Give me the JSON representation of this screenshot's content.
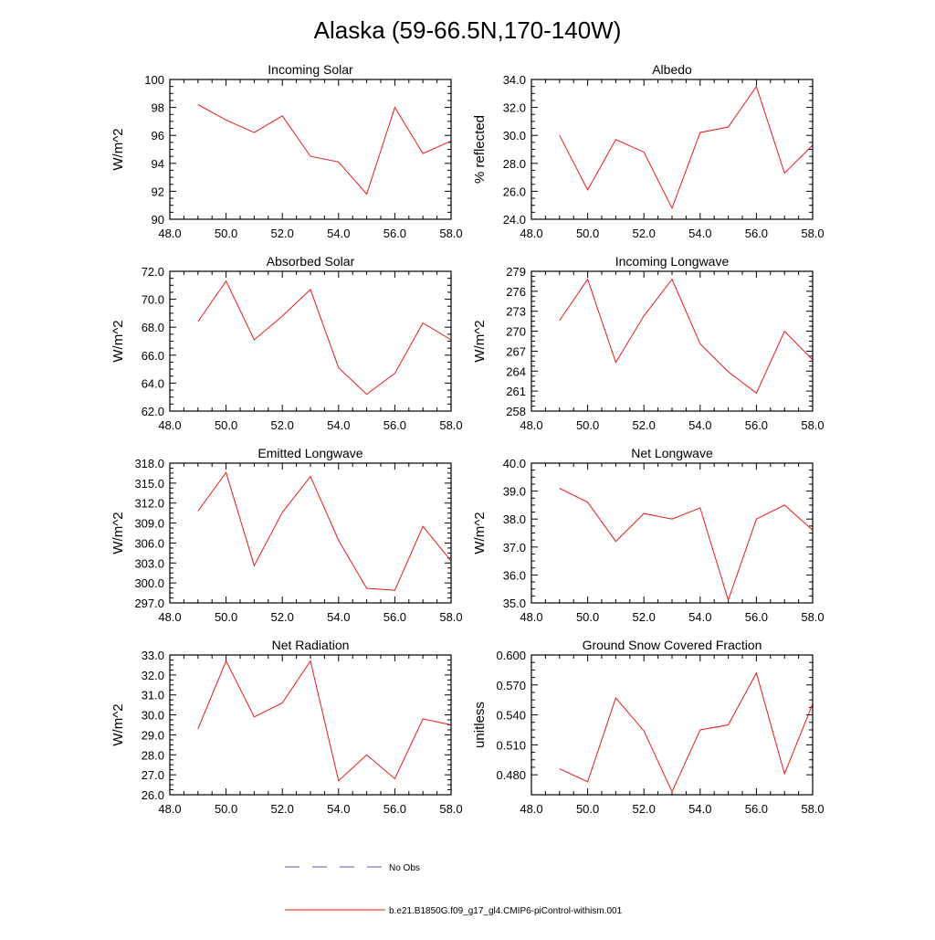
{
  "page": {
    "title": "Alaska (59-66.5N,170-140W)"
  },
  "legend": {
    "obs_label": "No Obs",
    "obs_color": "#5a5aa8",
    "model_label": "b.e21.B1850G.f09_g17_gl4.CMIP6-piControl-withism.001",
    "model_color": "#e41a1c"
  },
  "chart_data": [
    {
      "type": "line",
      "title": "Incoming Solar",
      "ylabel": "W/m^2",
      "xlim": [
        48,
        58
      ],
      "xticks": [
        "48.0",
        "50.0",
        "52.0",
        "54.0",
        "56.0",
        "58.0"
      ],
      "ylim": [
        90,
        100
      ],
      "yticks": [
        "90",
        "92",
        "94",
        "96",
        "98",
        "100"
      ],
      "series": [
        {
          "x": [
            49,
            50,
            51,
            52,
            53,
            54,
            55,
            56,
            57,
            58
          ],
          "values": [
            98.2,
            97.1,
            96.2,
            97.4,
            94.5,
            94.1,
            91.8,
            98.0,
            94.7,
            95.6
          ]
        }
      ]
    },
    {
      "type": "line",
      "title": "Albedo",
      "ylabel": "% reflected",
      "xlim": [
        48,
        58
      ],
      "xticks": [
        "48.0",
        "50.0",
        "52.0",
        "54.0",
        "56.0",
        "58.0"
      ],
      "ylim": [
        24,
        34
      ],
      "yticks": [
        "24.0",
        "26.0",
        "28.0",
        "30.0",
        "32.0",
        "34.0"
      ],
      "series": [
        {
          "x": [
            49,
            50,
            51,
            52,
            53,
            54,
            55,
            56,
            57,
            58
          ],
          "values": [
            30.0,
            26.1,
            29.7,
            28.8,
            24.8,
            30.2,
            30.6,
            33.5,
            27.3,
            29.3
          ]
        }
      ]
    },
    {
      "type": "line",
      "title": "Absorbed Solar",
      "ylabel": "W/m^2",
      "xlim": [
        48,
        58
      ],
      "xticks": [
        "48.0",
        "50.0",
        "52.0",
        "54.0",
        "56.0",
        "58.0"
      ],
      "ylim": [
        62,
        72
      ],
      "yticks": [
        "62.0",
        "64.0",
        "66.0",
        "68.0",
        "70.0",
        "72.0"
      ],
      "series": [
        {
          "x": [
            49,
            50,
            51,
            52,
            53,
            54,
            55,
            56,
            57,
            58
          ],
          "values": [
            68.4,
            71.3,
            67.1,
            68.8,
            70.7,
            65.1,
            63.2,
            64.7,
            68.3,
            67.1
          ]
        }
      ]
    },
    {
      "type": "line",
      "title": "Incoming Longwave",
      "ylabel": "W/m^2",
      "xlim": [
        48,
        58
      ],
      "xticks": [
        "48.0",
        "50.0",
        "52.0",
        "54.0",
        "56.0",
        "58.0"
      ],
      "ylim": [
        258,
        279
      ],
      "yticks": [
        "258",
        "261",
        "264",
        "267",
        "270",
        "273",
        "276",
        "279"
      ],
      "series": [
        {
          "x": [
            49,
            50,
            51,
            52,
            53,
            54,
            55,
            56,
            57,
            58
          ],
          "values": [
            271.6,
            277.8,
            265.3,
            272.3,
            277.8,
            268.1,
            263.9,
            260.7,
            270.0,
            265.7
          ]
        }
      ]
    },
    {
      "type": "line",
      "title": "Emitted Longwave",
      "ylabel": "W/m^2",
      "xlim": [
        48,
        58
      ],
      "xticks": [
        "48.0",
        "50.0",
        "52.0",
        "54.0",
        "56.0",
        "58.0"
      ],
      "ylim": [
        297,
        318
      ],
      "yticks": [
        "297.0",
        "300.0",
        "303.0",
        "306.0",
        "309.0",
        "312.0",
        "315.0",
        "318.0"
      ],
      "series": [
        {
          "x": [
            49,
            50,
            51,
            52,
            53,
            54,
            55,
            56,
            57,
            58
          ],
          "values": [
            310.8,
            316.6,
            302.6,
            310.6,
            316.0,
            306.4,
            299.2,
            298.9,
            308.5,
            303.3
          ]
        }
      ]
    },
    {
      "type": "line",
      "title": "Net Longwave",
      "ylabel": "W/m^2",
      "xlim": [
        48,
        58
      ],
      "xticks": [
        "48.0",
        "50.0",
        "52.0",
        "54.0",
        "56.0",
        "58.0"
      ],
      "ylim": [
        35,
        40
      ],
      "yticks": [
        "35.0",
        "36.0",
        "37.0",
        "38.0",
        "39.0",
        "40.0"
      ],
      "series": [
        {
          "x": [
            49,
            50,
            51,
            52,
            53,
            54,
            55,
            56,
            57,
            58
          ],
          "values": [
            39.1,
            38.6,
            37.2,
            38.2,
            38.0,
            38.4,
            35.1,
            38.0,
            38.5,
            37.6
          ]
        }
      ]
    },
    {
      "type": "line",
      "title": "Net Radiation",
      "ylabel": "W/m^2",
      "xlim": [
        48,
        58
      ],
      "xticks": [
        "48.0",
        "50.0",
        "52.0",
        "54.0",
        "56.0",
        "58.0"
      ],
      "ylim": [
        26,
        33
      ],
      "yticks": [
        "26.0",
        "27.0",
        "28.0",
        "29.0",
        "30.0",
        "31.0",
        "32.0",
        "33.0"
      ],
      "series": [
        {
          "x": [
            49,
            50,
            51,
            52,
            53,
            54,
            55,
            56,
            57,
            58
          ],
          "values": [
            29.3,
            32.7,
            29.9,
            30.6,
            32.7,
            26.7,
            28.0,
            26.8,
            29.8,
            29.5
          ]
        }
      ]
    },
    {
      "type": "line",
      "title": "Ground Snow Covered Fraction",
      "ylabel": "unitless",
      "xlim": [
        48,
        58
      ],
      "xticks": [
        "48.0",
        "50.0",
        "52.0",
        "54.0",
        "56.0",
        "58.0"
      ],
      "ylim": [
        0.46,
        0.6
      ],
      "yticks": [
        "0.480",
        "0.510",
        "0.540",
        "0.570",
        "0.600"
      ],
      "series": [
        {
          "x": [
            49,
            50,
            51,
            52,
            53,
            54,
            55,
            56,
            57,
            58
          ],
          "values": [
            0.486,
            0.473,
            0.557,
            0.524,
            0.463,
            0.525,
            0.53,
            0.582,
            0.481,
            0.551
          ]
        }
      ]
    }
  ]
}
